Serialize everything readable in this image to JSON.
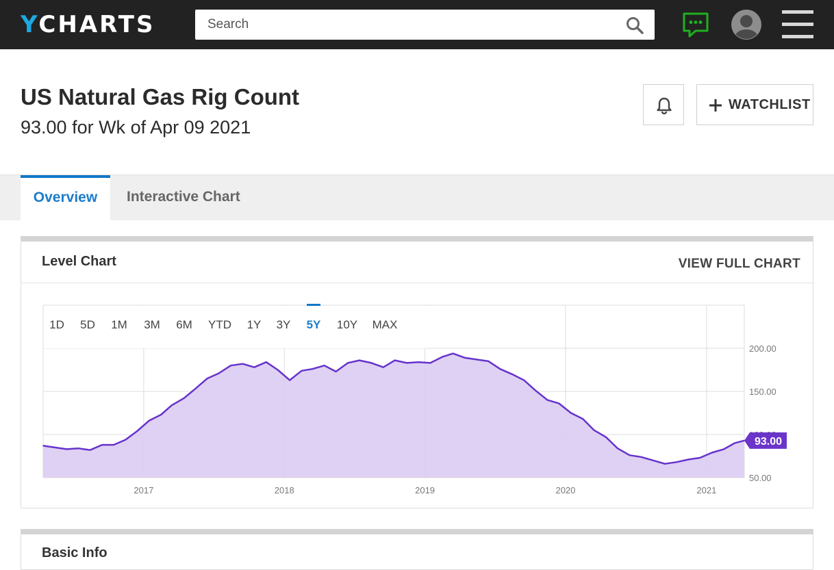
{
  "header": {
    "logo_y": "Y",
    "logo_rest": "CHARTS",
    "search_placeholder": "Search",
    "icons": [
      "search-icon",
      "chat-icon",
      "user-avatar-icon",
      "hamburger-menu-icon"
    ],
    "colors": {
      "topbar": "#222222",
      "logo_accent": "#1ea7e1",
      "chat": "#1db11d"
    }
  },
  "page": {
    "title": "US Natural Gas Rig Count",
    "subtitle": "93.00 for Wk of Apr 09 2021",
    "alert_icon": "bell-icon",
    "watchlist_label": "WATCHLIST"
  },
  "tabs": [
    {
      "label": "Overview",
      "active": true
    },
    {
      "label": "Interactive Chart",
      "active": false
    }
  ],
  "level_chart": {
    "title": "Level Chart",
    "view_full_label": "VIEW FULL CHART",
    "ranges": [
      "1D",
      "5D",
      "1M",
      "3M",
      "6M",
      "YTD",
      "1Y",
      "3Y",
      "5Y",
      "10Y",
      "MAX"
    ],
    "active_range": "5Y"
  },
  "chart_data": {
    "type": "area",
    "title": "",
    "xlabel": "",
    "ylabel": "",
    "x_ticks": [
      "2017",
      "2018",
      "2019",
      "2020",
      "2021"
    ],
    "y_ticks": [
      200,
      150,
      100,
      50
    ],
    "y_tick_labels": [
      "200.00",
      "150.00",
      "100.00",
      "50.00"
    ],
    "ylim": [
      50,
      200
    ],
    "xlim": [
      "2016-04-15",
      "2021-04-09"
    ],
    "last_value": 93.0,
    "last_value_label": "93.00",
    "grid": true,
    "color": "#6633cc",
    "fill": "#dcccf2",
    "series": [
      {
        "x": [
          "2016-04-15",
          "2016-05-15",
          "2016-06-15",
          "2016-07-15",
          "2016-08-15",
          "2016-09-15",
          "2016-10-15",
          "2016-11-15",
          "2016-12-15",
          "2017-01-15",
          "2017-02-15",
          "2017-03-15",
          "2017-04-15",
          "2017-05-15",
          "2017-06-15",
          "2017-07-15",
          "2017-08-15",
          "2017-09-15",
          "2017-10-15",
          "2017-11-15",
          "2017-12-15",
          "2018-01-15",
          "2018-02-15",
          "2018-03-15",
          "2018-04-15",
          "2018-05-15",
          "2018-06-15",
          "2018-07-15",
          "2018-08-15",
          "2018-09-15",
          "2018-10-15",
          "2018-11-15",
          "2018-12-15",
          "2019-01-15",
          "2019-02-15",
          "2019-03-15",
          "2019-04-15",
          "2019-05-15",
          "2019-06-15",
          "2019-07-15",
          "2019-08-15",
          "2019-09-15",
          "2019-10-15",
          "2019-11-15",
          "2019-12-15",
          "2020-01-15",
          "2020-02-15",
          "2020-03-15",
          "2020-04-15",
          "2020-05-15",
          "2020-06-15",
          "2020-07-15",
          "2020-08-15",
          "2020-09-15",
          "2020-10-15",
          "2020-11-15",
          "2020-12-15",
          "2021-01-15",
          "2021-02-15",
          "2021-03-15",
          "2021-04-09"
        ],
        "y": [
          87,
          85,
          83,
          84,
          82,
          88,
          88,
          94,
          104,
          116,
          123,
          134,
          142,
          153,
          165,
          171,
          180,
          182,
          178,
          184,
          175,
          163,
          174,
          176,
          180,
          173,
          183,
          186,
          183,
          178,
          186,
          183,
          184,
          183,
          190,
          194,
          189,
          187,
          185,
          176,
          170,
          163,
          151,
          140,
          136,
          125,
          118,
          105,
          97,
          84,
          76,
          74,
          70,
          66,
          68,
          71,
          73,
          79,
          83,
          90,
          93
        ]
      }
    ]
  }
}
